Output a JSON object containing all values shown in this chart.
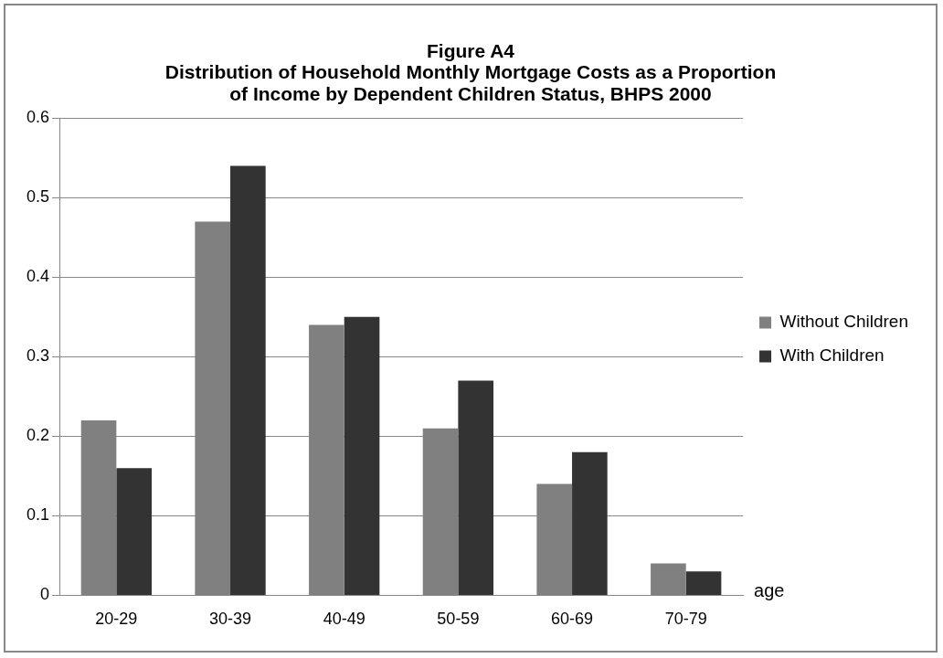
{
  "chart_data": {
    "type": "bar",
    "title": "Figure A4\nDistribution of Household Monthly Mortgage Costs as a Proportion\nof Income by Dependent Children Status, BHPS 2000",
    "xlabel": "age",
    "categories": [
      "20-29",
      "30-39",
      "40-49",
      "50-59",
      "60-69",
      "70-79"
    ],
    "series": [
      {
        "name": "Without Children",
        "color": "#808080",
        "values": [
          0.22,
          0.47,
          0.34,
          0.21,
          0.14,
          0.04
        ]
      },
      {
        "name": "With Children",
        "color": "#333333",
        "values": [
          0.16,
          0.54,
          0.35,
          0.27,
          0.18,
          0.03
        ]
      }
    ],
    "ylim": [
      0,
      0.6
    ],
    "yticks": [
      0,
      0.1,
      0.2,
      0.3,
      0.4,
      0.5,
      0.6
    ],
    "grid": "y",
    "legend": "right"
  }
}
